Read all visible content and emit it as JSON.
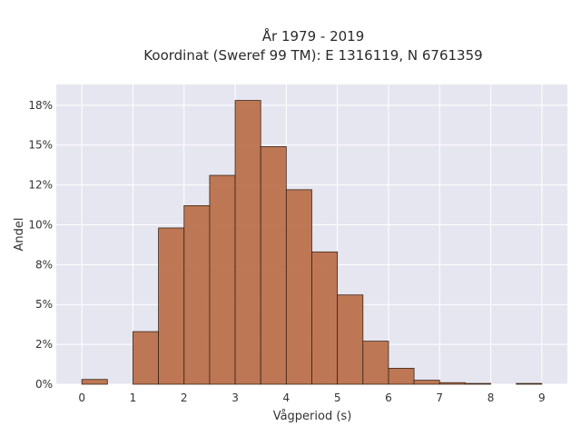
{
  "chart_data": {
    "type": "bar",
    "title_line1": "År 1979 - 2019",
    "title_line2": "Koordinat (Sweref 99 TM): E 1316119, N 6761359",
    "xlabel": "Vågperiod (s)",
    "ylabel": "Andel",
    "xlim": [
      -0.5,
      9.5
    ],
    "ylim": [
      0,
      18.8
    ],
    "x_ticks": [
      0,
      1,
      2,
      3,
      4,
      5,
      6,
      7,
      8,
      9
    ],
    "x_tick_labels": [
      "0",
      "1",
      "2",
      "3",
      "4",
      "5",
      "6",
      "7",
      "8",
      "9"
    ],
    "y_ticks": [
      0,
      2.5,
      5,
      7.5,
      10,
      12.5,
      15,
      17.5
    ],
    "y_tick_labels": [
      "0%",
      "2%",
      "5%",
      "8%",
      "10%",
      "12%",
      "15%",
      "18%"
    ],
    "grid": true,
    "bar_color": "#b86a43",
    "bar_edge_color": "#3a2418",
    "plot_background": "#e6e6f0",
    "bins": [
      {
        "x0": 0.0,
        "x1": 0.5,
        "value": 0.3
      },
      {
        "x0": 1.0,
        "x1": 1.5,
        "value": 3.3
      },
      {
        "x0": 1.5,
        "x1": 2.0,
        "value": 9.8
      },
      {
        "x0": 2.0,
        "x1": 2.5,
        "value": 11.2
      },
      {
        "x0": 2.5,
        "x1": 3.0,
        "value": 13.1
      },
      {
        "x0": 3.0,
        "x1": 3.5,
        "value": 17.8
      },
      {
        "x0": 3.5,
        "x1": 4.0,
        "value": 14.9
      },
      {
        "x0": 4.0,
        "x1": 4.5,
        "value": 12.2
      },
      {
        "x0": 4.5,
        "x1": 5.0,
        "value": 8.3
      },
      {
        "x0": 5.0,
        "x1": 5.5,
        "value": 5.6
      },
      {
        "x0": 5.5,
        "x1": 6.0,
        "value": 2.7
      },
      {
        "x0": 6.0,
        "x1": 6.5,
        "value": 1.0
      },
      {
        "x0": 6.5,
        "x1": 7.0,
        "value": 0.25
      },
      {
        "x0": 7.0,
        "x1": 7.5,
        "value": 0.1
      },
      {
        "x0": 7.5,
        "x1": 8.0,
        "value": 0.05
      },
      {
        "x0": 8.5,
        "x1": 9.0,
        "value": 0.05
      }
    ]
  }
}
